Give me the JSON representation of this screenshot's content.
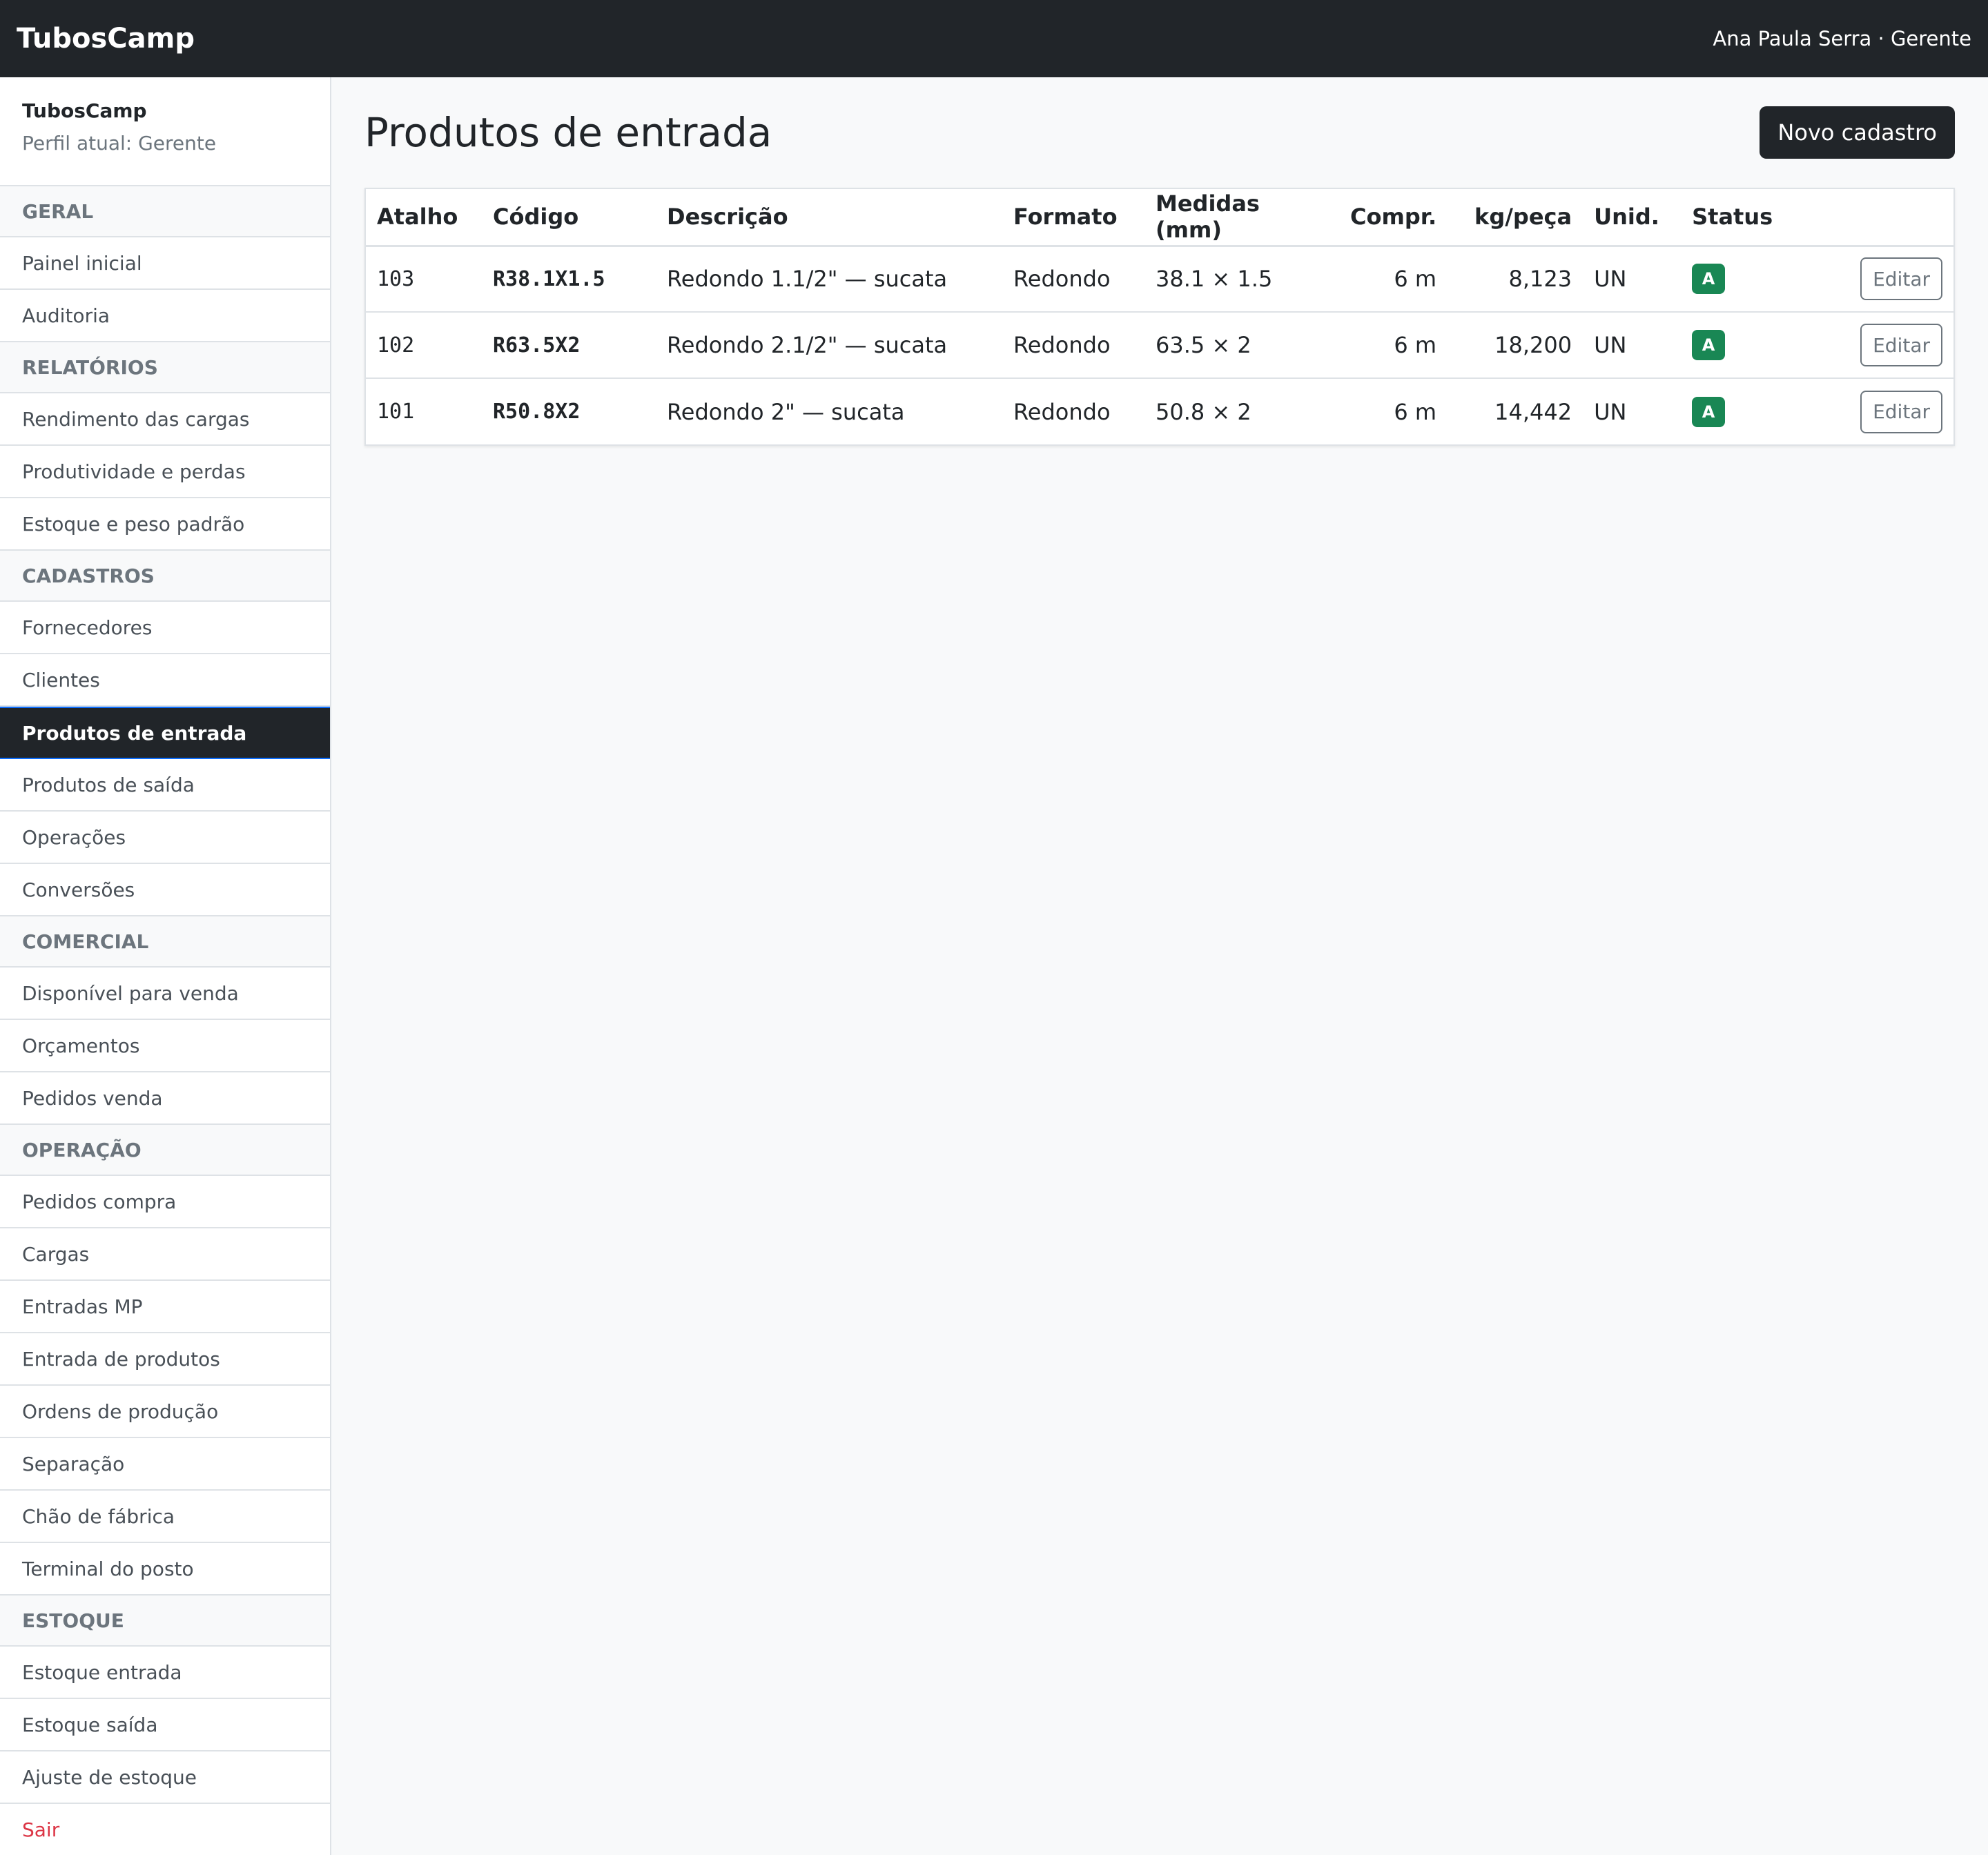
{
  "topbar": {
    "brand": "TubosCamp",
    "user": "Ana Paula Serra · Gerente"
  },
  "sidebar": {
    "app_name": "TubosCamp",
    "role": "Perfil atual: Gerente",
    "groups": [
      {
        "title": "Geral",
        "items": [
          "Painel inicial",
          "Auditoria"
        ]
      },
      {
        "title": "Relatórios",
        "items": [
          "Rendimento das cargas",
          "Produtividade e perdas",
          "Estoque e peso padrão"
        ]
      },
      {
        "title": "Cadastros",
        "items": [
          "Fornecedores",
          "Clientes",
          "Produtos de entrada",
          "Produtos de saída",
          "Operações",
          "Conversões"
        ]
      },
      {
        "title": "Comercial",
        "items": [
          "Disponível para venda",
          "Orçamentos",
          "Pedidos venda"
        ]
      },
      {
        "title": "Operação",
        "items": [
          "Pedidos compra",
          "Cargas",
          "Entradas MP",
          "Entrada de produtos",
          "Ordens de produção",
          "Separação",
          "Chão de fábrica",
          "Terminal do posto"
        ]
      },
      {
        "title": "Estoque",
        "items": [
          "Estoque entrada",
          "Estoque saída",
          "Ajuste de estoque"
        ]
      }
    ],
    "logout": "Sair"
  },
  "main": {
    "title": "Produtos de entrada",
    "new_button": "Novo cadastro",
    "columns": {
      "atalho": "Atalho",
      "codigo": "Código",
      "descricao": "Descrição",
      "formato": "Formato",
      "medidas": "Medidas (mm)",
      "compr": "Compr.",
      "kg": "kg/peça",
      "unid": "Unid.",
      "status": "Status"
    },
    "rows": [
      {
        "atalho": "103",
        "codigo": "R38.1X1.5",
        "descricao": "Redondo 1.1/2\" — sucata",
        "formato": "Redondo",
        "medidas": "38.1 × 1.5",
        "compr": "6 m",
        "kg": "8,123",
        "unid": "UN",
        "status": "A",
        "action": "Editar"
      },
      {
        "atalho": "102",
        "codigo": "R63.5X2",
        "descricao": "Redondo 2.1/2\" — sucata",
        "formato": "Redondo",
        "medidas": "63.5 × 2",
        "compr": "6 m",
        "kg": "18,200",
        "unid": "UN",
        "status": "A",
        "action": "Editar"
      },
      {
        "atalho": "101",
        "codigo": "R50.8X2",
        "descricao": "Redondo 2\" — sucata",
        "formato": "Redondo",
        "medidas": "50.8 × 2",
        "compr": "6 m",
        "kg": "14,442",
        "unid": "UN",
        "status": "A",
        "action": "Editar"
      }
    ]
  }
}
